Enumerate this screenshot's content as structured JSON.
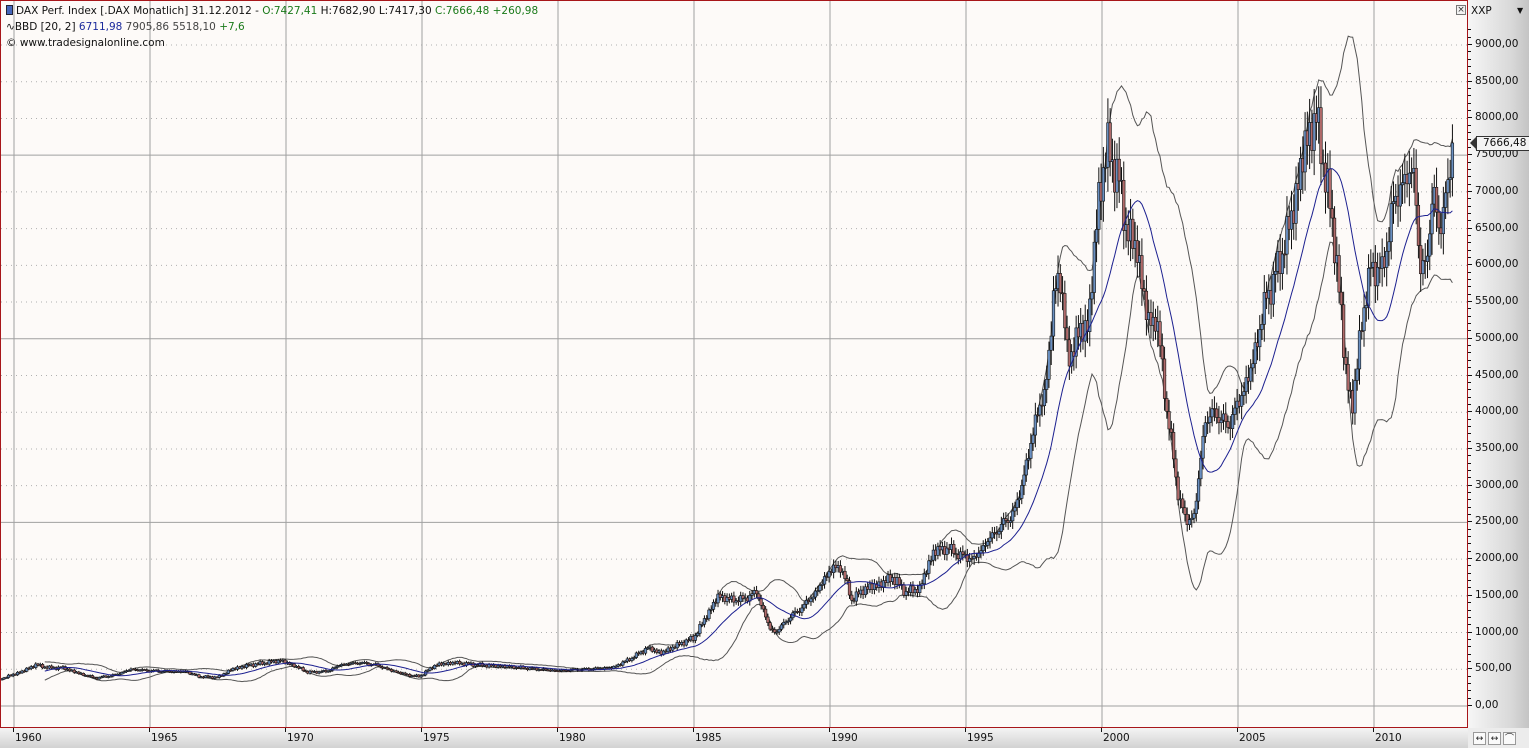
{
  "legend": {
    "line1": {
      "symbol": "DAX Perf. Index [.DAX  Monatlich] 31.12.2012 -",
      "open": "O:7427,41",
      "high": "H:7682,90",
      "low": "L:7417,30",
      "close": "C:7666,48",
      "change": "+260,98"
    },
    "line2": {
      "indicator": "BBD [20, 2]",
      "mid": "6711,98",
      "upper": "7905,86",
      "lower": "5518,10",
      "change": "+7,6"
    },
    "line3": "© www.tradesignalonline.com"
  },
  "axis_panel": {
    "currency": "XXP",
    "last_price_label": "7666,48",
    "close_icon": "×"
  },
  "toolbar": {
    "buttons": [
      "↔",
      "↔",
      "⌒"
    ]
  },
  "colors": {
    "frame": "#a8161a",
    "up_candle": "#6a8fc0",
    "down_candle": "#b06a6a",
    "mid_band": "#1c2090",
    "outer_band": "#555555",
    "grid_solid": "#a0a0a0",
    "grid_dotted": "#b0b0b0"
  },
  "chart_data": {
    "type": "candlestick",
    "title": "DAX Perf. Index [.DAX Monatlich] 31.12.2012",
    "xlabel": "",
    "ylabel": "",
    "ylim": [
      0,
      9000
    ],
    "y_ticks": [
      "0,00",
      "500,00",
      "1000,00",
      "1500,00",
      "2000,00",
      "2500,00",
      "3000,00",
      "3500,00",
      "4000,00",
      "4500,00",
      "5000,00",
      "5500,00",
      "6000,00",
      "6500,00",
      "7000,00",
      "7500,00",
      "8000,00",
      "8500,00",
      "9000,00"
    ],
    "x_ticks": [
      "1960",
      "1965",
      "1970",
      "1975",
      "1980",
      "1985",
      "1990",
      "1995",
      "2000",
      "2005",
      "2010"
    ],
    "grid": true,
    "legend_position": "top-left",
    "series_close_points": {
      "x": [
        1959.6,
        1960.3,
        1960.8,
        1961.3,
        1961.8,
        1962.5,
        1963.0,
        1963.7,
        1964.3,
        1965.0,
        1965.7,
        1966.3,
        1966.8,
        1967.5,
        1968.0,
        1968.7,
        1969.3,
        1969.8,
        1970.3,
        1970.8,
        1971.5,
        1972.0,
        1972.7,
        1973.3,
        1973.9,
        1974.5,
        1974.9,
        1975.5,
        1976.2,
        1977.0,
        1978.0,
        1979.0,
        1980.0,
        1981.0,
        1982.0,
        1982.7,
        1983.3,
        1983.8,
        1984.5,
        1985.0,
        1985.5,
        1985.9,
        1986.3,
        1986.8,
        1987.3,
        1987.8,
        1988.0,
        1988.5,
        1989.0,
        1989.5,
        1990.0,
        1990.4,
        1990.8,
        1991.3,
        1991.8,
        1992.3,
        1992.8,
        1993.3,
        1993.8,
        1994.3,
        1994.8,
        1995.3,
        1995.8,
        1996.3,
        1996.8,
        1997.3,
        1997.6,
        1997.9,
        1998.2,
        1998.5,
        1998.75,
        1999.0,
        1999.5,
        1999.9,
        2000.2,
        2000.6,
        2000.9,
        2001.3,
        2001.7,
        2002.0,
        2002.4,
        2002.8,
        2003.1,
        2003.4,
        2003.8,
        2004.2,
        2004.6,
        2005.0,
        2005.5,
        2006.0,
        2006.5,
        2007.0,
        2007.5,
        2007.9,
        2008.3,
        2008.6,
        2008.9,
        2009.2,
        2009.5,
        2009.9,
        2010.3,
        2010.7,
        2011.0,
        2011.5,
        2011.7,
        2011.9,
        2012.2,
        2012.5,
        2012.9
      ],
      "close": [
        380,
        470,
        560,
        520,
        520,
        430,
        380,
        420,
        500,
        480,
        470,
        470,
        400,
        390,
        500,
        560,
        590,
        620,
        550,
        460,
        470,
        560,
        590,
        560,
        480,
        420,
        400,
        560,
        590,
        560,
        540,
        510,
        480,
        500,
        520,
        650,
        790,
        720,
        850,
        930,
        1250,
        1500,
        1450,
        1450,
        1550,
        1050,
        1000,
        1200,
        1350,
        1550,
        1850,
        1900,
        1450,
        1600,
        1650,
        1750,
        1550,
        1600,
        2100,
        2150,
        2050,
        2000,
        2250,
        2450,
        2650,
        3400,
        4000,
        4200,
        5500,
        5900,
        4600,
        5000,
        5200,
        7000,
        7600,
        7200,
        6500,
        6200,
        5200,
        5300,
        4000,
        2900,
        2500,
        2600,
        3900,
        4000,
        3800,
        4100,
        4600,
        5500,
        6000,
        6700,
        7700,
        8000,
        7000,
        6200,
        4800,
        4000,
        5100,
        6000,
        5900,
        6800,
        7100,
        7300,
        5800,
        6100,
        6900,
        6500,
        7666
      ]
    },
    "bollinger": {
      "period": 20,
      "stddev": 2,
      "last_mid": 6711.98,
      "last_upper": 7905.86,
      "last_lower": 5518.1
    },
    "last": {
      "open": 7427.41,
      "high": 7682.9,
      "low": 7417.3,
      "close": 7666.48,
      "change": 260.98
    }
  }
}
